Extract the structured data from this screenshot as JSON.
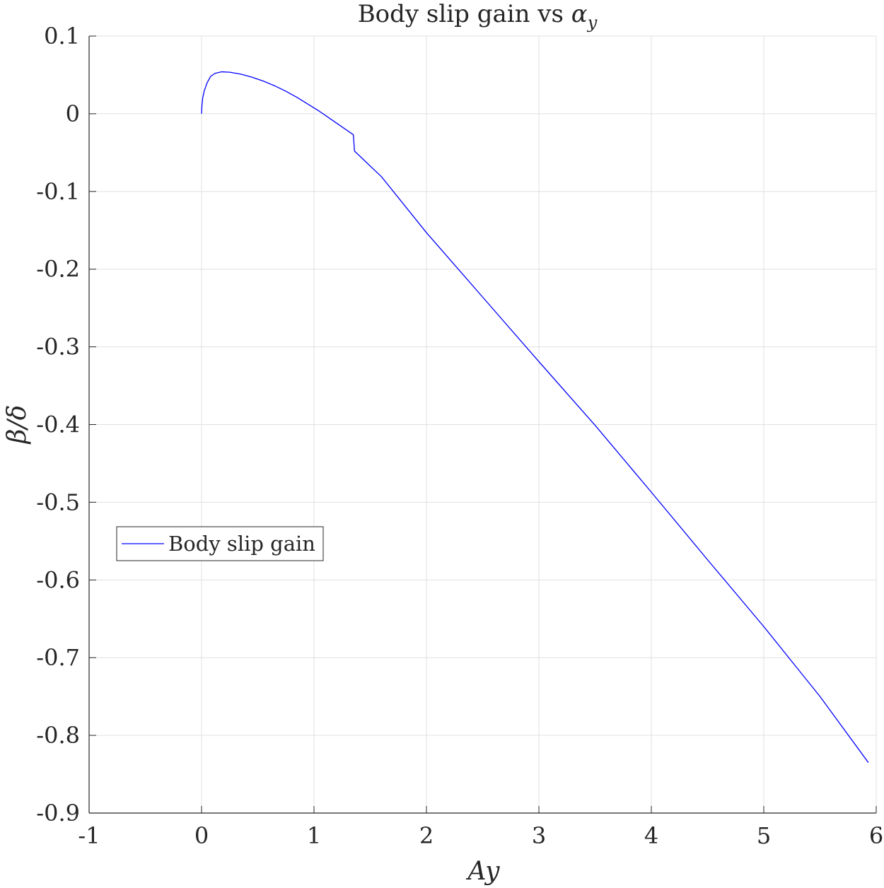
{
  "chart_data": {
    "type": "line",
    "title": "Body slip gain vs ",
    "title_symbol": "α",
    "title_subscript": "y",
    "xlabel": "Ay",
    "ylabel": "β/δ",
    "xlim": [
      -1,
      6
    ],
    "ylim": [
      -0.9,
      0.1
    ],
    "xticks": [
      "-1",
      "0",
      "1",
      "2",
      "3",
      "4",
      "5",
      "6"
    ],
    "yticks": [
      "0.1",
      "0",
      "-0.1",
      "-0.2",
      "-0.3",
      "-0.4",
      "-0.5",
      "-0.6",
      "-0.7",
      "-0.8",
      "-0.9"
    ],
    "grid": true,
    "legend_position": "middle-left",
    "series": [
      {
        "name": "Body slip gain",
        "color": "#0000ff",
        "points": [
          [
            0.0,
            0.0
          ],
          [
            0.003,
            0.01
          ],
          [
            0.01,
            0.02
          ],
          [
            0.025,
            0.03
          ],
          [
            0.05,
            0.04
          ],
          [
            0.08,
            0.048
          ],
          [
            0.12,
            0.052
          ],
          [
            0.18,
            0.054
          ],
          [
            0.25,
            0.0535
          ],
          [
            0.35,
            0.051
          ],
          [
            0.45,
            0.047
          ],
          [
            0.55,
            0.042
          ],
          [
            0.65,
            0.036
          ],
          [
            0.75,
            0.029
          ],
          [
            0.85,
            0.021
          ],
          [
            0.95,
            0.012
          ],
          [
            1.05,
            0.003
          ],
          [
            1.15,
            -0.007
          ],
          [
            1.25,
            -0.017
          ],
          [
            1.35,
            -0.027
          ],
          [
            1.36,
            -0.048
          ],
          [
            1.6,
            -0.081
          ],
          [
            2.0,
            -0.153
          ],
          [
            2.5,
            -0.236
          ],
          [
            3.0,
            -0.319
          ],
          [
            3.5,
            -0.401
          ],
          [
            4.0,
            -0.487
          ],
          [
            4.5,
            -0.574
          ],
          [
            5.0,
            -0.66
          ],
          [
            5.5,
            -0.75
          ],
          [
            5.93,
            -0.835
          ]
        ]
      }
    ]
  }
}
